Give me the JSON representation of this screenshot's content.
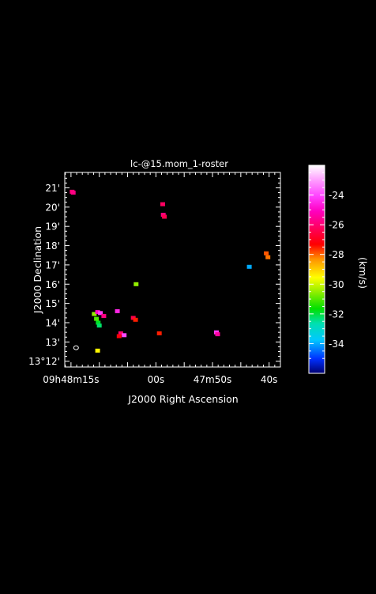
{
  "chart_data": {
    "type": "heatmap",
    "title": "lc-@15.mom_1-roster",
    "xlabel": "J2000 Right Ascension",
    "ylabel": "J2000 Declination",
    "x_ticks": [
      {
        "sec": 15,
        "label": "09h48m15s"
      },
      {
        "sec": 0,
        "label": "00s"
      },
      {
        "sec": -10,
        "label": "47m50s"
      },
      {
        "sec": -20,
        "label": "40s"
      }
    ],
    "y_ticks": [
      {
        "arcmin": 12,
        "label": "13°12'"
      },
      {
        "arcmin": 13,
        "label": "13'"
      },
      {
        "arcmin": 14,
        "label": "14'"
      },
      {
        "arcmin": 15,
        "label": "15'"
      },
      {
        "arcmin": 16,
        "label": "16'"
      },
      {
        "arcmin": 17,
        "label": "17'"
      },
      {
        "arcmin": 18,
        "label": "18'"
      },
      {
        "arcmin": 19,
        "label": "19'"
      },
      {
        "arcmin": 20,
        "label": "20'"
      },
      {
        "arcmin": 21,
        "label": "21'"
      }
    ],
    "xlim_sec_rel_09h48m00s": [
      16.1,
      -22.0
    ],
    "ylim_arcmin_rel_13d00m": [
      11.7,
      21.8
    ],
    "colorbar": {
      "label": "(km/s)",
      "range": [
        -36,
        -22
      ],
      "ticks": [
        -24,
        -26,
        -28,
        -30,
        -32,
        -34
      ]
    },
    "sources": [
      {
        "ra_sec": 14.8,
        "dec_arcmin": 20.8,
        "velocity": -26.0
      },
      {
        "ra_sec": 14.6,
        "dec_arcmin": 20.75,
        "velocity": -25.8
      },
      {
        "ra_sec": -1.2,
        "dec_arcmin": 20.15,
        "velocity": -26.2
      },
      {
        "ra_sec": -1.3,
        "dec_arcmin": 19.6,
        "velocity": -25.8
      },
      {
        "ra_sec": -1.5,
        "dec_arcmin": 19.5,
        "velocity": -26.4
      },
      {
        "ra_sec": -19.5,
        "dec_arcmin": 17.6,
        "velocity": -27.9
      },
      {
        "ra_sec": -19.8,
        "dec_arcmin": 17.4,
        "velocity": -28.1
      },
      {
        "ra_sec": -16.5,
        "dec_arcmin": 16.9,
        "velocity": -34.0
      },
      {
        "ra_sec": 3.5,
        "dec_arcmin": 16.0,
        "velocity": -30.5
      },
      {
        "ra_sec": 10.9,
        "dec_arcmin": 14.45,
        "velocity": -30.5
      },
      {
        "ra_sec": 10.3,
        "dec_arcmin": 14.55,
        "velocity": -25.0
      },
      {
        "ra_sec": 9.8,
        "dec_arcmin": 14.5,
        "velocity": -24.2
      },
      {
        "ra_sec": 9.2,
        "dec_arcmin": 14.35,
        "velocity": -25.8
      },
      {
        "ra_sec": 10.5,
        "dec_arcmin": 14.2,
        "velocity": -31.0
      },
      {
        "ra_sec": 10.2,
        "dec_arcmin": 14.0,
        "velocity": -31.8
      },
      {
        "ra_sec": 10.0,
        "dec_arcmin": 13.85,
        "velocity": -32.2
      },
      {
        "ra_sec": 6.8,
        "dec_arcmin": 14.6,
        "velocity": -24.5
      },
      {
        "ra_sec": 4.0,
        "dec_arcmin": 14.25,
        "velocity": -26.5
      },
      {
        "ra_sec": 3.6,
        "dec_arcmin": 14.15,
        "velocity": -27.5
      },
      {
        "ra_sec": 6.2,
        "dec_arcmin": 13.45,
        "velocity": -26.0
      },
      {
        "ra_sec": 5.6,
        "dec_arcmin": 13.35,
        "velocity": -24.0
      },
      {
        "ra_sec": 6.5,
        "dec_arcmin": 13.3,
        "velocity": -27.2
      },
      {
        "ra_sec": -0.6,
        "dec_arcmin": 13.45,
        "velocity": -27.5
      },
      {
        "ra_sec": -10.7,
        "dec_arcmin": 13.5,
        "velocity": -24.2
      },
      {
        "ra_sec": -10.9,
        "dec_arcmin": 13.4,
        "velocity": -25.5
      },
      {
        "ra_sec": 10.3,
        "dec_arcmin": 12.55,
        "velocity": -29.5
      }
    ],
    "beam": {
      "ra_sec": 14.1,
      "dec_arcmin": 12.7
    }
  }
}
